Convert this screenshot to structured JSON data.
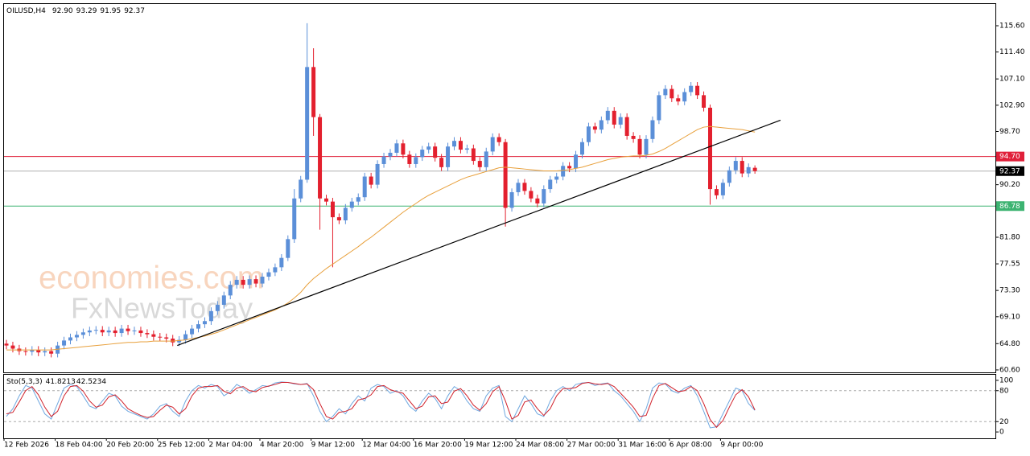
{
  "chart_data": [
    {
      "type": "candlestick",
      "title": "OILUSD,H4",
      "last_bar_labels": [
        "92.90",
        "93.29",
        "91.95",
        "92.37"
      ],
      "watermarks": [
        "economies.com",
        "FxNewsToday"
      ],
      "categories": [
        "12 Feb 2026",
        null,
        null,
        null,
        null,
        null,
        null,
        null,
        "18 Feb 04:00",
        null,
        null,
        null,
        null,
        null,
        null,
        null,
        "20 Feb 20:00",
        null,
        null,
        null,
        null,
        null,
        null,
        null,
        "25 Feb 12:00",
        null,
        null,
        null,
        null,
        null,
        null,
        null,
        "2 Mar 04:00",
        null,
        null,
        null,
        null,
        null,
        null,
        null,
        "4 Mar 20:00",
        null,
        null,
        null,
        null,
        null,
        null,
        null,
        "9 Mar 12:00",
        null,
        null,
        null,
        null,
        null,
        null,
        null,
        "12 Mar 04:00",
        null,
        null,
        null,
        null,
        null,
        null,
        null,
        "16 Mar 20:00",
        null,
        null,
        null,
        null,
        null,
        null,
        null,
        "19 Mar 12:00",
        null,
        null,
        null,
        null,
        null,
        null,
        null,
        "24 Mar 08:00",
        null,
        null,
        null,
        null,
        null,
        null,
        null,
        "27 Mar 00:00",
        null,
        null,
        null,
        null,
        null,
        null,
        null,
        "31 Mar 16:00",
        null,
        null,
        null,
        null,
        null,
        null,
        null,
        "6 Apr 08:00",
        null,
        null,
        null,
        null,
        null,
        null,
        null,
        "9 Apr 00:00",
        null,
        null,
        null,
        null,
        null
      ],
      "open": [
        64.8,
        64.5,
        64.0,
        63.6,
        63.5,
        63.8,
        63.4,
        63.6,
        63.2,
        64.5,
        65.3,
        65.8,
        66.2,
        66.6,
        66.9,
        67.0,
        66.6,
        66.9,
        66.5,
        67.2,
        66.8,
        66.9,
        66.5,
        66.3,
        65.9,
        65.8,
        65.6,
        65.0,
        65.4,
        66.3,
        67.2,
        67.9,
        68.4,
        70.0,
        71.0,
        72.5,
        74.2,
        75.0,
        74.2,
        75.1,
        74.4,
        75.5,
        76.2,
        77.0,
        78.5,
        81.5,
        88.0,
        91.0,
        109.0,
        101.0,
        88.0,
        87.5,
        85.0,
        84.5,
        86.5,
        87.5,
        88.2,
        91.5,
        90.2,
        93.5,
        94.7,
        95.3,
        96.8,
        95.0,
        93.5,
        94.6,
        95.8,
        96.3,
        94.5,
        93.0,
        96.3,
        97.2,
        95.8,
        96.0,
        94.0,
        93.0,
        95.5,
        97.8,
        97.0,
        86.5,
        89.0,
        90.5,
        89.2,
        88.0,
        87.2,
        89.5,
        91.0,
        91.5,
        93.2,
        92.8,
        95.0,
        97.0,
        99.5,
        99.0,
        100.5,
        102.0,
        99.8,
        101.0,
        98.0,
        97.5,
        95.0,
        97.5,
        100.5,
        104.5,
        105.5,
        104.0,
        103.5,
        105.0,
        106.0,
        104.5,
        102.5,
        89.5,
        88.5,
        90.5,
        92.5,
        94.0,
        92.0,
        92.9
      ],
      "high": [
        65.4,
        65.1,
        64.6,
        64.2,
        64.4,
        64.4,
        64.2,
        64.2,
        65.1,
        65.9,
        66.4,
        66.8,
        67.2,
        67.5,
        67.6,
        67.6,
        67.5,
        67.5,
        67.8,
        67.8,
        67.5,
        67.5,
        67.1,
        66.9,
        66.5,
        66.4,
        66.2,
        66.0,
        66.9,
        67.8,
        68.5,
        69.0,
        70.6,
        71.6,
        73.1,
        74.8,
        75.6,
        75.6,
        75.7,
        75.7,
        76.1,
        76.8,
        77.6,
        79.1,
        82.1,
        89.5,
        91.6,
        116.0,
        112.0,
        101.5,
        88.6,
        88.1,
        85.6,
        87.1,
        88.1,
        88.8,
        92.1,
        92.1,
        94.1,
        95.3,
        95.9,
        97.4,
        97.4,
        95.6,
        95.2,
        96.4,
        96.9,
        96.9,
        95.1,
        96.9,
        97.8,
        97.8,
        96.6,
        96.6,
        94.6,
        96.1,
        98.4,
        98.4,
        97.5,
        89.6,
        91.1,
        91.1,
        89.8,
        88.6,
        90.1,
        91.6,
        92.1,
        93.8,
        93.8,
        95.6,
        97.6,
        100.1,
        100.1,
        101.1,
        102.6,
        102.6,
        101.6,
        101.6,
        98.6,
        98.1,
        98.1,
        101.1,
        105.1,
        106.1,
        106.1,
        104.6,
        105.6,
        106.6,
        106.6,
        105.1,
        103.0,
        90.1,
        91.1,
        93.1,
        94.6,
        94.6,
        93.6,
        93.29
      ],
      "low": [
        63.9,
        63.4,
        63.0,
        62.9,
        62.9,
        62.8,
        62.8,
        62.6,
        62.6,
        63.9,
        64.7,
        65.2,
        65.6,
        66.0,
        66.3,
        66.0,
        66.0,
        65.9,
        65.9,
        66.2,
        66.2,
        65.9,
        65.7,
        65.3,
        65.2,
        65.0,
        64.4,
        64.4,
        64.8,
        65.7,
        66.6,
        67.3,
        67.8,
        69.4,
        70.4,
        71.9,
        73.6,
        73.6,
        73.6,
        73.8,
        73.8,
        74.9,
        75.6,
        76.4,
        78.0,
        80.9,
        87.4,
        90.5,
        98.0,
        83.0,
        86.9,
        77.0,
        83.9,
        83.9,
        85.9,
        86.9,
        87.6,
        89.6,
        89.6,
        92.9,
        94.1,
        94.7,
        94.4,
        92.9,
        92.9,
        94.0,
        95.2,
        93.9,
        92.4,
        92.4,
        95.7,
        95.2,
        95.2,
        93.4,
        92.4,
        92.4,
        94.9,
        96.4,
        83.5,
        85.9,
        88.4,
        88.6,
        87.4,
        86.6,
        86.6,
        88.9,
        90.4,
        90.9,
        92.2,
        92.2,
        94.4,
        96.4,
        98.4,
        98.4,
        99.9,
        99.2,
        99.2,
        97.4,
        96.9,
        94.4,
        94.4,
        96.9,
        99.9,
        103.9,
        103.4,
        102.9,
        102.9,
        104.4,
        103.9,
        101.9,
        87.0,
        87.9,
        87.9,
        89.9,
        91.9,
        91.4,
        91.4,
        91.95
      ],
      "close": [
        64.5,
        64.0,
        63.6,
        63.5,
        63.8,
        63.4,
        63.6,
        63.2,
        64.5,
        65.3,
        65.8,
        66.2,
        66.6,
        66.9,
        67.0,
        66.6,
        66.9,
        66.5,
        67.2,
        66.8,
        66.9,
        66.5,
        66.3,
        65.9,
        65.8,
        65.6,
        65.0,
        65.4,
        66.3,
        67.2,
        67.9,
        68.4,
        70.0,
        71.0,
        72.5,
        74.2,
        75.0,
        74.2,
        75.1,
        74.4,
        75.5,
        76.2,
        77.0,
        78.5,
        81.5,
        88.0,
        91.0,
        109.0,
        101.0,
        88.0,
        87.5,
        85.0,
        84.5,
        86.5,
        87.5,
        88.2,
        91.5,
        90.2,
        93.5,
        94.7,
        95.3,
        96.8,
        95.0,
        93.5,
        94.6,
        95.8,
        96.3,
        94.5,
        93.0,
        96.3,
        97.2,
        95.8,
        96.0,
        94.0,
        93.0,
        95.5,
        97.8,
        97.0,
        86.5,
        89.0,
        90.5,
        89.2,
        88.0,
        87.2,
        89.5,
        91.0,
        91.5,
        93.2,
        92.8,
        95.0,
        97.0,
        99.5,
        99.0,
        100.5,
        102.0,
        99.8,
        101.0,
        98.0,
        97.5,
        95.0,
        97.5,
        100.5,
        104.5,
        105.5,
        104.0,
        103.5,
        105.0,
        106.0,
        104.5,
        102.5,
        89.5,
        88.5,
        90.5,
        92.5,
        94.0,
        92.0,
        93.0,
        92.37
      ],
      "up_color": "#5b8fd8",
      "down_color": "#e3202e",
      "ma": {
        "color": "#e8a03c",
        "values": [
          63.8,
          63.8,
          63.8,
          63.8,
          63.8,
          63.8,
          63.8,
          63.8,
          63.9,
          64.0,
          64.1,
          64.2,
          64.3,
          64.4,
          64.5,
          64.6,
          64.7,
          64.8,
          64.9,
          65.0,
          65.0,
          65.1,
          65.1,
          65.2,
          65.2,
          65.2,
          65.2,
          65.3,
          65.4,
          65.6,
          65.8,
          66.0,
          66.3,
          66.6,
          67.0,
          67.4,
          67.8,
          68.2,
          68.6,
          69.0,
          69.4,
          69.8,
          70.2,
          70.7,
          71.3,
          72.1,
          73.0,
          74.2,
          75.2,
          76.0,
          76.8,
          77.5,
          78.2,
          78.9,
          79.6,
          80.3,
          81.1,
          81.8,
          82.6,
          83.4,
          84.2,
          85.0,
          85.8,
          86.5,
          87.2,
          87.9,
          88.5,
          89.0,
          89.5,
          90.0,
          90.5,
          91.0,
          91.4,
          91.7,
          92.0,
          92.3,
          92.6,
          92.9,
          93.0,
          92.9,
          92.8,
          92.7,
          92.6,
          92.5,
          92.4,
          92.4,
          92.4,
          92.5,
          92.6,
          92.8,
          93.0,
          93.3,
          93.6,
          93.9,
          94.2,
          94.4,
          94.6,
          94.7,
          94.8,
          94.8,
          94.9,
          95.1,
          95.5,
          96.0,
          96.6,
          97.2,
          97.8,
          98.4,
          99.0,
          99.4,
          99.5,
          99.4,
          99.3,
          99.2,
          99.1,
          99.0,
          98.8,
          98.6
        ]
      },
      "trendline": {
        "color": "#000000",
        "x": [
          26.7,
          121
        ],
        "y": [
          64.5,
          100.5
        ]
      },
      "levels": [
        {
          "value": 94.7,
          "label": "94.70",
          "color": "#e0203a"
        },
        {
          "value": 86.78,
          "label": "86.78",
          "color": "#3cb371"
        }
      ],
      "ylim": [
        60.21,
        119.07
      ],
      "yticks": [
        {
          "value": 115.6,
          "label": "115.60"
        },
        {
          "value": 111.4,
          "label": "111.40"
        },
        {
          "value": 107.1,
          "label": "107.10"
        },
        {
          "value": 102.9,
          "label": "102.90"
        },
        {
          "value": 98.7,
          "label": "98.70"
        },
        {
          "value": 90.2,
          "label": "90.20"
        },
        {
          "value": 81.8,
          "label": "81.80"
        },
        {
          "value": 77.55,
          "label": "77.55"
        },
        {
          "value": 73.3,
          "label": "73.30"
        },
        {
          "value": 69.1,
          "label": "69.10"
        },
        {
          "value": 64.8,
          "label": "64.80"
        },
        {
          "value": 60.6,
          "label": "60.60"
        }
      ]
    },
    {
      "type": "line",
      "title": "Sto(5,3,3)",
      "series": [
        {
          "color": "#6fa8e0",
          "values": [
            30,
            45,
            70,
            90,
            85,
            60,
            35,
            25,
            55,
            85,
            92,
            88,
            70,
            50,
            45,
            60,
            75,
            70,
            50,
            40,
            35,
            30,
            25,
            35,
            50,
            55,
            40,
            30,
            60,
            80,
            90,
            85,
            92,
            88,
            70,
            78,
            92,
            85,
            75,
            82,
            90,
            88,
            95,
            97,
            96,
            93,
            92,
            94,
            70,
            40,
            20,
            30,
            45,
            35,
            55,
            70,
            60,
            85,
            92,
            88,
            75,
            80,
            70,
            50,
            40,
            60,
            75,
            65,
            45,
            70,
            88,
            80,
            60,
            45,
            40,
            70,
            85,
            90,
            30,
            20,
            45,
            70,
            55,
            35,
            30,
            60,
            80,
            88,
            80,
            92,
            95,
            96,
            90,
            93,
            95,
            80,
            70,
            55,
            40,
            20,
            45,
            85,
            95,
            93,
            80,
            75,
            85,
            90,
            70,
            40,
            8,
            10,
            35,
            60,
            85,
            80,
            55,
            41.8213
          ]
        },
        {
          "color": "#d0202a",
          "values": [
            35,
            38,
            58,
            80,
            88,
            72,
            48,
            30,
            40,
            70,
            88,
            90,
            79,
            60,
            48,
            52,
            68,
            72,
            60,
            45,
            38,
            32,
            28,
            30,
            42,
            52,
            48,
            35,
            45,
            70,
            85,
            88,
            88,
            90,
            79,
            74,
            85,
            88,
            80,
            78,
            86,
            89,
            92,
            96,
            96,
            94,
            92,
            93,
            82,
            55,
            30,
            25,
            38,
            40,
            45,
            62,
            65,
            72,
            88,
            90,
            82,
            78,
            75,
            60,
            45,
            50,
            68,
            70,
            55,
            58,
            79,
            84,
            70,
            52,
            42,
            55,
            78,
            88,
            60,
            25,
            32,
            58,
            62,
            45,
            32,
            45,
            70,
            84,
            84,
            86,
            94,
            96,
            93,
            92,
            94,
            88,
            75,
            62,
            48,
            30,
            32,
            65,
            90,
            94,
            86,
            78,
            80,
            88,
            80,
            55,
            24,
            9,
            22,
            48,
            72,
            82,
            68,
            42.5234
          ]
        }
      ],
      "levels": [
        80,
        20
      ],
      "ylim": [
        -12.3,
        110.8
      ],
      "yticks": [
        100,
        80,
        20,
        0
      ]
    }
  ]
}
